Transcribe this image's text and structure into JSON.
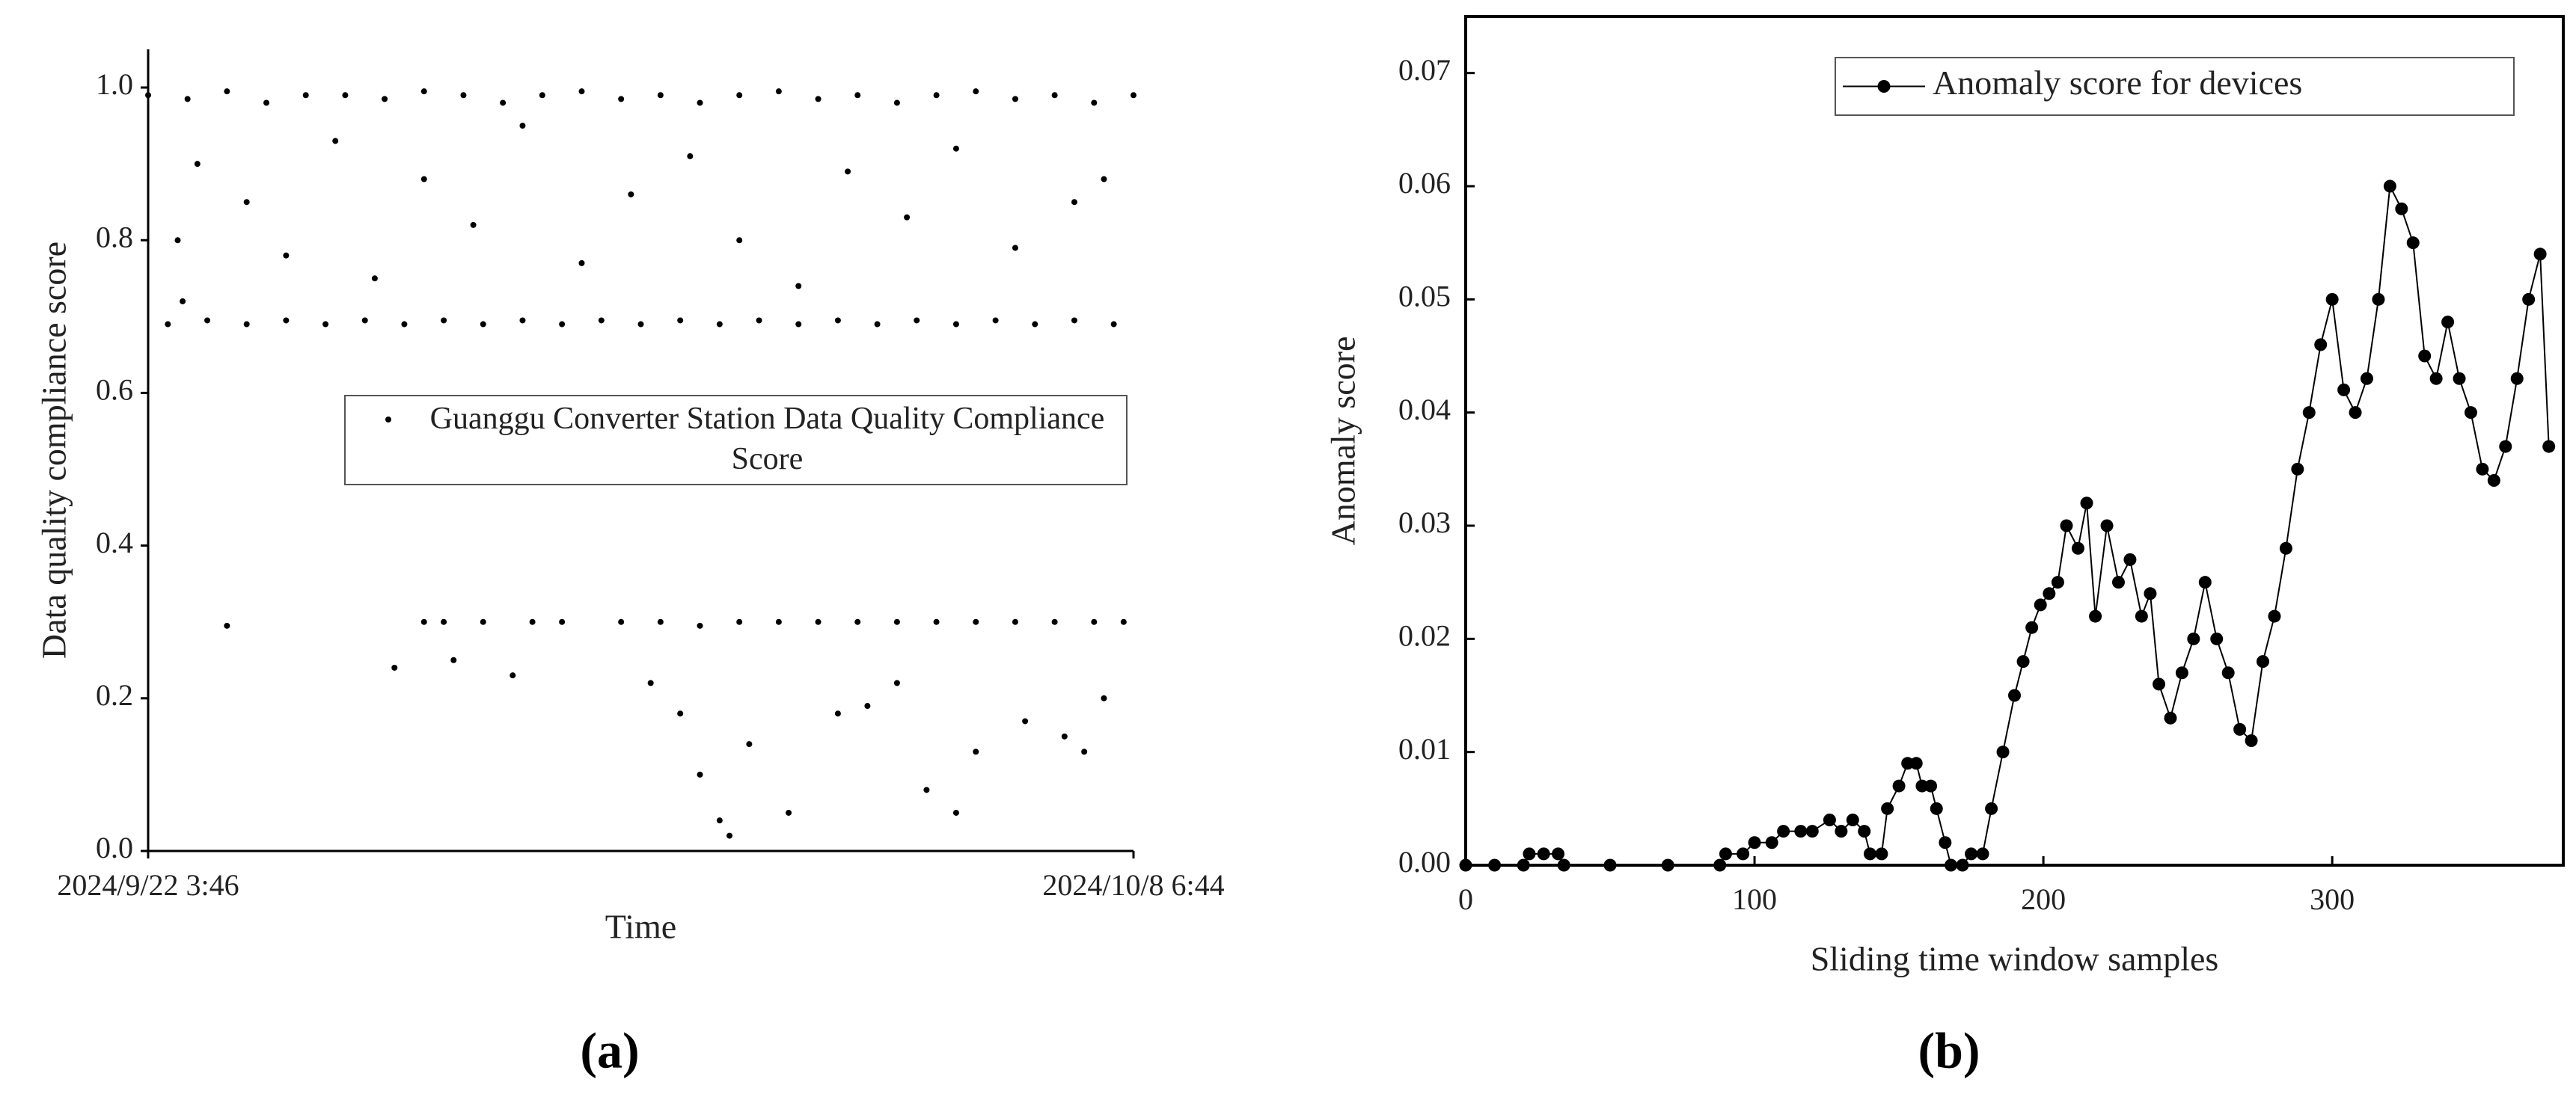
{
  "chart_data": [
    {
      "type": "scatter",
      "label": "(a)",
      "xlabel": "Time",
      "ylabel": "Data quality compliance score",
      "xlim": [
        0,
        100
      ],
      "xticks": [
        {
          "value": 0,
          "label": "2024/9/22 3:46"
        },
        {
          "value": 100,
          "label": "2024/10/8 6:44"
        }
      ],
      "ylim": [
        0,
        1.05
      ],
      "yticks": [
        {
          "value": 0,
          "label": "0.0"
        },
        0.2,
        0.4,
        0.6,
        0.8,
        {
          "value": 1,
          "label": "1.0"
        }
      ],
      "series": [
        {
          "name": "Guanggu Converter Station Data Quality Compliance Score",
          "color": "#000000",
          "x": [
            0,
            4,
            8,
            12,
            16,
            20,
            24,
            28,
            32,
            36,
            40,
            44,
            48,
            52,
            56,
            60,
            64,
            68,
            72,
            76,
            80,
            84,
            88,
            92,
            96,
            100,
            2,
            6,
            10,
            14,
            18,
            22,
            26,
            30,
            34,
            38,
            42,
            46,
            50,
            54,
            58,
            62,
            66,
            70,
            74,
            78,
            82,
            86,
            90,
            94,
            98,
            3,
            3.5,
            5,
            10,
            14,
            19,
            23,
            28,
            33,
            38,
            44,
            49,
            55,
            60,
            66,
            71,
            77,
            82,
            88,
            94,
            97,
            8,
            28,
            30,
            34,
            39,
            42,
            48,
            52,
            56,
            60,
            64,
            68,
            72,
            76,
            80,
            84,
            88,
            92,
            96,
            99,
            25,
            31,
            37,
            51,
            54,
            56,
            58,
            59,
            61,
            65,
            70,
            73,
            76,
            79,
            82,
            84,
            89,
            93,
            95,
            97
          ],
          "values": [
            0.99,
            0.985,
            0.995,
            0.98,
            0.99,
            0.99,
            0.985,
            0.995,
            0.99,
            0.98,
            0.99,
            0.995,
            0.985,
            0.99,
            0.98,
            0.99,
            0.995,
            0.985,
            0.99,
            0.98,
            0.99,
            0.995,
            0.985,
            0.99,
            0.98,
            0.99,
            0.69,
            0.695,
            0.69,
            0.695,
            0.69,
            0.695,
            0.69,
            0.695,
            0.69,
            0.695,
            0.69,
            0.695,
            0.69,
            0.695,
            0.69,
            0.695,
            0.69,
            0.695,
            0.69,
            0.695,
            0.69,
            0.695,
            0.69,
            0.695,
            0.69,
            0.8,
            0.72,
            0.9,
            0.85,
            0.78,
            0.93,
            0.75,
            0.88,
            0.82,
            0.95,
            0.77,
            0.86,
            0.91,
            0.8,
            0.74,
            0.89,
            0.83,
            0.92,
            0.79,
            0.85,
            0.88,
            0.295,
            0.3,
            0.3,
            0.3,
            0.3,
            0.3,
            0.3,
            0.3,
            0.295,
            0.3,
            0.3,
            0.3,
            0.3,
            0.3,
            0.3,
            0.3,
            0.3,
            0.3,
            0.3,
            0.3,
            0.24,
            0.25,
            0.23,
            0.22,
            0.18,
            0.1,
            0.04,
            0.02,
            0.14,
            0.05,
            0.18,
            0.19,
            0.22,
            0.08,
            0.05,
            0.13,
            0.17,
            0.15,
            0.13,
            0.2
          ]
        }
      ]
    },
    {
      "type": "line",
      "label": "(b)",
      "xlabel": "Sliding time window samples",
      "ylabel": "Anomaly score",
      "xlim": [
        0,
        380
      ],
      "xticks": [
        0,
        100,
        200,
        300
      ],
      "ylim": [
        0,
        0.075
      ],
      "yticks": [
        {
          "value": 0,
          "label": "0.00"
        },
        {
          "value": 0.01,
          "label": "0.01"
        },
        {
          "value": 0.02,
          "label": "0.02"
        },
        {
          "value": 0.03,
          "label": "0.03"
        },
        {
          "value": 0.04,
          "label": "0.04"
        },
        {
          "value": 0.05,
          "label": "0.05"
        },
        {
          "value": 0.06,
          "label": "0.06"
        },
        {
          "value": 0.07,
          "label": "0.07"
        }
      ],
      "series": [
        {
          "name": "Anomaly score for devices",
          "color": "#000000",
          "x": [
            0,
            10,
            20,
            22,
            27,
            32,
            34,
            50,
            70,
            88,
            90,
            96,
            100,
            106,
            110,
            116,
            120,
            126,
            130,
            134,
            138,
            140,
            144,
            146,
            150,
            153,
            156,
            158,
            161,
            163,
            166,
            168,
            172,
            175,
            179,
            182,
            186,
            190,
            193,
            196,
            199,
            202,
            205,
            208,
            212,
            215,
            218,
            222,
            226,
            230,
            234,
            237,
            240,
            244,
            248,
            252,
            256,
            260,
            264,
            268,
            272,
            276,
            280,
            284,
            288,
            292,
            296,
            300,
            304,
            308,
            312,
            316,
            320,
            324,
            328,
            332,
            336,
            340,
            344,
            348,
            352,
            356,
            360,
            364,
            368,
            372,
            375
          ],
          "values": [
            0,
            0,
            0,
            0.001,
            0.001,
            0.001,
            0,
            0,
            0,
            0,
            0.001,
            0.001,
            0.002,
            0.002,
            0.003,
            0.003,
            0.003,
            0.004,
            0.003,
            0.004,
            0.003,
            0.001,
            0.001,
            0.005,
            0.007,
            0.009,
            0.009,
            0.007,
            0.007,
            0.005,
            0.002,
            0,
            0,
            0.001,
            0.001,
            0.005,
            0.01,
            0.015,
            0.018,
            0.021,
            0.023,
            0.024,
            0.025,
            0.03,
            0.028,
            0.032,
            0.022,
            0.03,
            0.025,
            0.027,
            0.022,
            0.024,
            0.016,
            0.013,
            0.017,
            0.02,
            0.025,
            0.02,
            0.017,
            0.012,
            0.011,
            0.018,
            0.022,
            0.028,
            0.035,
            0.04,
            0.046,
            0.05,
            0.042,
            0.04,
            0.043,
            0.05,
            0.06,
            0.058,
            0.055,
            0.045,
            0.043,
            0.048,
            0.043,
            0.04,
            0.035,
            0.034,
            0.037,
            0.043,
            0.05,
            0.054,
            0.037
          ]
        }
      ]
    }
  ]
}
